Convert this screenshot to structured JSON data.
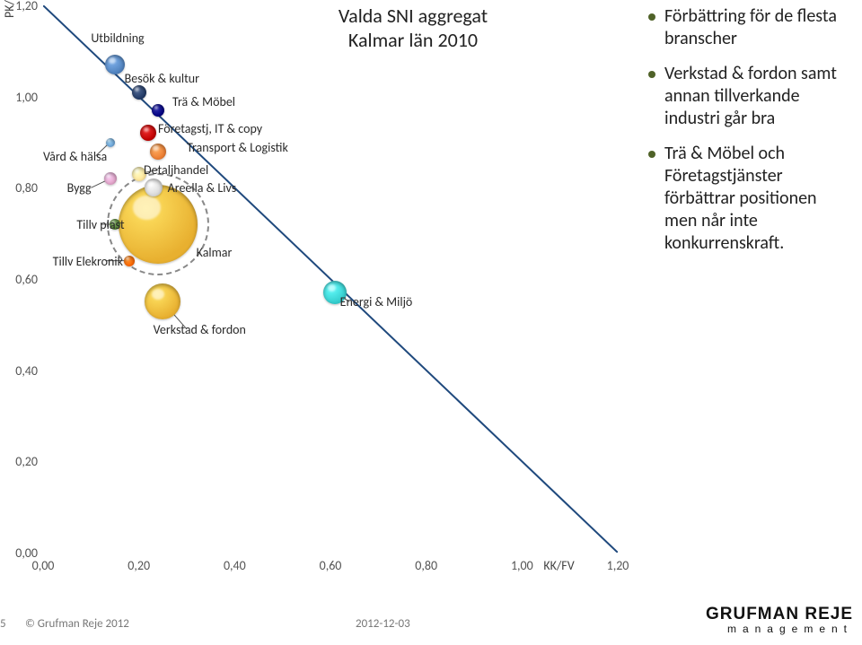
{
  "chart": {
    "title": "Valda SNI aggregat\nKalmar län 2010",
    "xaxis": {
      "title": "KK/FV",
      "min": 0.0,
      "max": 1.2,
      "ticks": [
        0.0,
        0.2,
        0.4,
        0.6,
        0.8,
        1.0,
        1.2
      ]
    },
    "yaxis": {
      "title": "PK/FV",
      "min": 0.0,
      "max": 1.2,
      "ticks": [
        0.0,
        0.2,
        0.4,
        0.6,
        0.8,
        1.0,
        1.2
      ]
    },
    "diagonal_color": "#1f497d",
    "bubbles": [
      {
        "label": "Utbildning",
        "x": 0.15,
        "y": 1.07,
        "size": 22,
        "color": "#4f81bd",
        "lx": 0.1,
        "ly": 1.13
      },
      {
        "label": "Besök & kultur",
        "x": 0.2,
        "y": 1.01,
        "size": 16,
        "color": "#203864",
        "lx": 0.17,
        "ly": 1.04
      },
      {
        "label": "Trä & Möbel",
        "x": 0.24,
        "y": 0.97,
        "size": 14,
        "color": "#000080",
        "lx": 0.27,
        "ly": 0.99
      },
      {
        "label": "Vård & hälsa",
        "x": 0.14,
        "y": 0.9,
        "size": 10,
        "color": "#6fa8dc",
        "lx": 0.0,
        "ly": 0.87
      },
      {
        "label": "Företagstj, IT & copy",
        "x": 0.22,
        "y": 0.92,
        "size": 18,
        "color": "#c00000",
        "lx": 0.24,
        "ly": 0.93
      },
      {
        "label": "Transport & Logistik",
        "x": 0.24,
        "y": 0.88,
        "size": 18,
        "color": "#ed7d31",
        "lx": 0.3,
        "ly": 0.89
      },
      {
        "label": "Detaljhandel",
        "x": 0.2,
        "y": 0.83,
        "size": 16,
        "color": "#ffe699",
        "lx": 0.21,
        "ly": 0.84
      },
      {
        "label": "Areella & Livs",
        "x": 0.23,
        "y": 0.8,
        "size": 20,
        "color": "#d9d9d9",
        "lx": 0.26,
        "ly": 0.8
      },
      {
        "label": "Bygg",
        "x": 0.14,
        "y": 0.82,
        "size": 14,
        "color": "#e2a2c8",
        "lx": 0.05,
        "ly": 0.8
      },
      {
        "label": "Tillv plast",
        "x": 0.15,
        "y": 0.72,
        "size": 12,
        "color": "#548235",
        "lx": 0.07,
        "ly": 0.72
      },
      {
        "label": "Tillv Elekronik",
        "x": 0.18,
        "y": 0.64,
        "size": 12,
        "color": "#ff6600",
        "lx": 0.02,
        "ly": 0.64
      },
      {
        "label": "Kalmar",
        "x": 0.24,
        "y": 0.72,
        "size": 88,
        "color": "#e8b030",
        "lx": 0.32,
        "ly": 0.66,
        "ring": true,
        "ring_size": 110
      },
      {
        "label": "Verkstad & fordon",
        "x": 0.25,
        "y": 0.55,
        "size": 40,
        "color": "#e8b030",
        "lx": 0.23,
        "ly": 0.49
      },
      {
        "label": "Energi & Miljö",
        "x": 0.61,
        "y": 0.57,
        "size": 26,
        "color": "#33cccc",
        "lx": 0.62,
        "ly": 0.55
      }
    ],
    "callouts": [
      {
        "from_x": 0.14,
        "from_y": 0.9,
        "to_x": 0.11,
        "to_y": 0.87,
        "color": "#555"
      },
      {
        "from_x": 0.14,
        "from_y": 0.82,
        "to_x": 0.1,
        "to_y": 0.8,
        "color": "#555"
      },
      {
        "from_x": 0.15,
        "from_y": 0.72,
        "to_x": 0.12,
        "to_y": 0.72,
        "color": "#555"
      },
      {
        "from_x": 0.18,
        "from_y": 0.64,
        "to_x": 0.13,
        "to_y": 0.64,
        "color": "#555"
      },
      {
        "from_x": 0.25,
        "from_y": 0.55,
        "to_x": 0.3,
        "to_y": 0.49,
        "color": "#555"
      },
      {
        "from_x": 0.2,
        "from_y": 0.83,
        "to_x": 0.24,
        "to_y": 0.84,
        "color": "#555"
      },
      {
        "from_x": 0.61,
        "from_y": 0.57,
        "to_x": 0.64,
        "to_y": 0.55,
        "color": "#555"
      }
    ]
  },
  "bullets": [
    "Förbättring för de flesta branscher",
    "Verkstad & fordon samt annan tillverkande industri går bra",
    "Trä & Möbel och Företagstjänster förbättrar positionen men når inte konkurrenskraft."
  ],
  "footer": {
    "slide_no": "5",
    "copyright": "© Grufman Reje 2012",
    "date": "2012-12-03",
    "brand_main": "GRUFMAN REJE",
    "brand_sub": "management"
  }
}
